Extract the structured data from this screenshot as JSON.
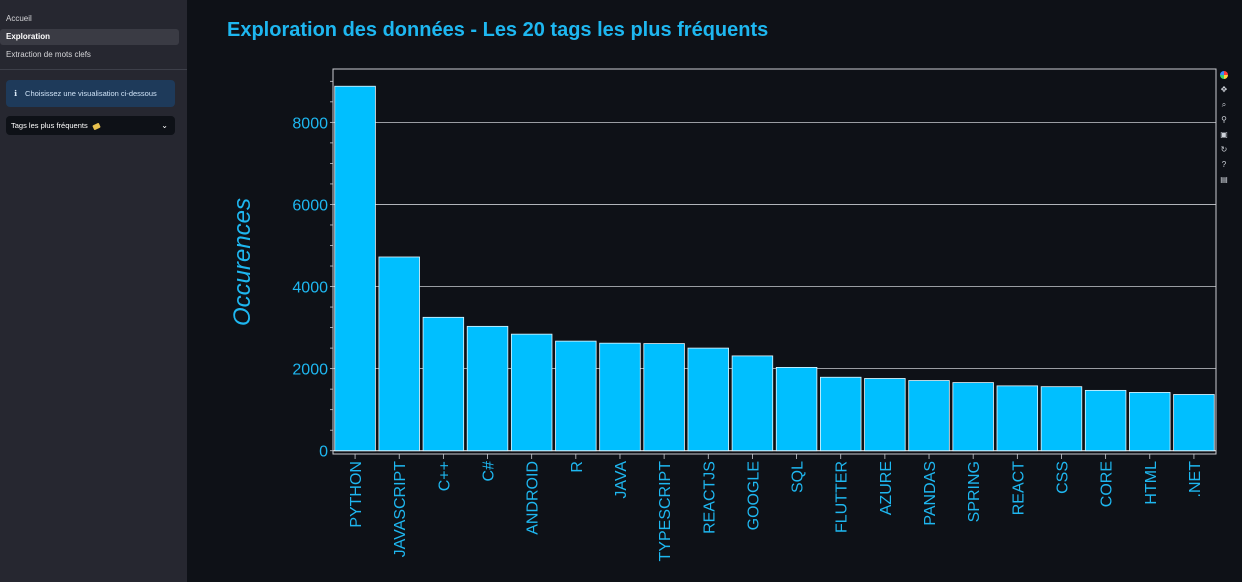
{
  "sidebar": {
    "nav": [
      "Accueil",
      "Exploration",
      "Extraction de mots clefs"
    ],
    "info_icon": "ℹ",
    "info_text": "Choisissez une visualisation ci-dessous",
    "select_value": "Tags les plus fréquents",
    "select_emoji_icon": "label-tag-icon",
    "select_chevron": "⌄"
  },
  "page": {
    "title": "Exploration des données - Les 20 tags les plus fréquents"
  },
  "modebar": {
    "icons": [
      "plotly-logo-icon",
      "pan-icon",
      "zoom-icon",
      "lasso-icon",
      "save-icon",
      "reset-icon",
      "help-icon",
      "info-icon"
    ],
    "glyphs": [
      "",
      "✥",
      "⌕",
      "⚲",
      "▣",
      "↻",
      "?",
      "▤"
    ]
  },
  "chart_data": {
    "type": "bar",
    "categories": [
      "PYTHON",
      "JAVASCRIPT",
      "C++",
      "C#",
      "ANDROID",
      "R",
      "JAVA",
      "TYPESCRIPT",
      "REACTJS",
      "GOOGLE",
      "SQL",
      "FLUTTER",
      "AZURE",
      "PANDAS",
      "SPRING",
      "REACT",
      "CSS",
      "CORE",
      "HTML",
      ".NET"
    ],
    "values": [
      8880,
      4720,
      3250,
      3030,
      2840,
      2670,
      2620,
      2610,
      2500,
      2310,
      2030,
      1790,
      1760,
      1710,
      1660,
      1580,
      1560,
      1470,
      1420,
      1370
    ],
    "title": "",
    "xlabel": "",
    "ylabel": "Occurences",
    "ylim": [
      -80,
      9300
    ],
    "yticks": [
      0,
      2000,
      4000,
      6000,
      8000
    ],
    "grid": true,
    "bar_color": "#00bfff",
    "text_color": "#1eb7f0"
  }
}
